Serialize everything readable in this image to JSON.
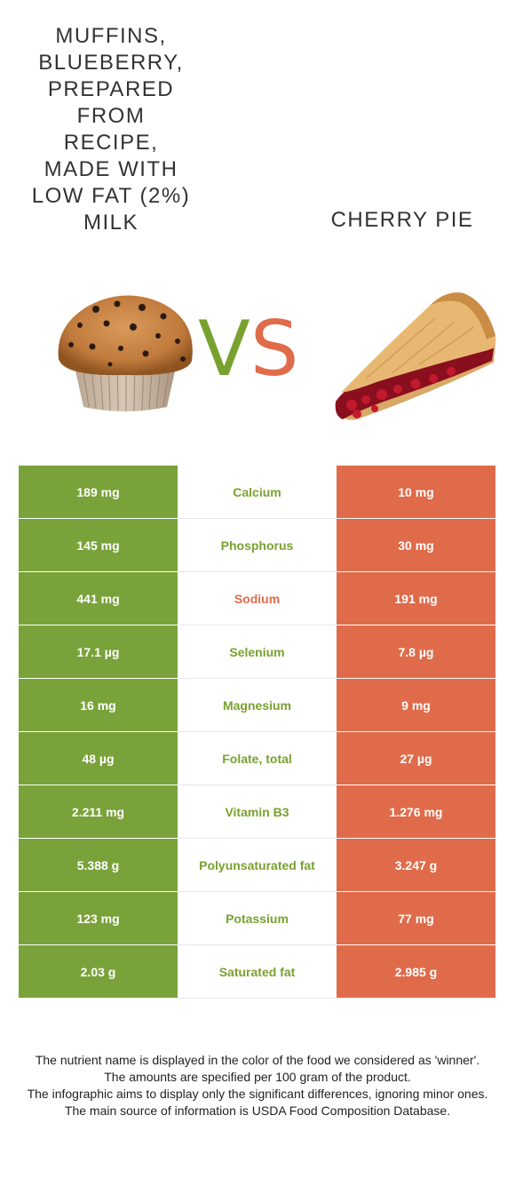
{
  "foods": {
    "left": {
      "name": "Muffins, blueberry, prepared from recipe, made with low fat (2%) milk",
      "color": "#78a22f"
    },
    "right": {
      "name": "Cherry pie",
      "color": "#e06b4a"
    }
  },
  "vs": {
    "v": "V",
    "s": "S"
  },
  "nutrients": [
    {
      "name": "Calcium",
      "left": "189 mg",
      "right": "10 mg",
      "winner": "left"
    },
    {
      "name": "Phosphorus",
      "left": "145 mg",
      "right": "30 mg",
      "winner": "left"
    },
    {
      "name": "Sodium",
      "left": "441 mg",
      "right": "191 mg",
      "winner": "right"
    },
    {
      "name": "Selenium",
      "left": "17.1 µg",
      "right": "7.8 µg",
      "winner": "left"
    },
    {
      "name": "Magnesium",
      "left": "16 mg",
      "right": "9 mg",
      "winner": "left"
    },
    {
      "name": "Folate, total",
      "left": "48 µg",
      "right": "27 µg",
      "winner": "left"
    },
    {
      "name": "Vitamin B3",
      "left": "2.211 mg",
      "right": "1.276 mg",
      "winner": "left"
    },
    {
      "name": "Polyunsaturated fat",
      "left": "5.388 g",
      "right": "3.247 g",
      "winner": "left"
    },
    {
      "name": "Potassium",
      "left": "123 mg",
      "right": "77 mg",
      "winner": "left"
    },
    {
      "name": "Saturated fat",
      "left": "2.03 g",
      "right": "2.985 g",
      "winner": "left"
    }
  ],
  "footer": [
    "The nutrient name is displayed in the color of the food we considered as 'winner'.",
    "The amounts are specified per 100 gram of the product.",
    "The infographic aims to display only the significant differences, ignoring minor ones.",
    "The main source of information is USDA Food Composition Database."
  ]
}
